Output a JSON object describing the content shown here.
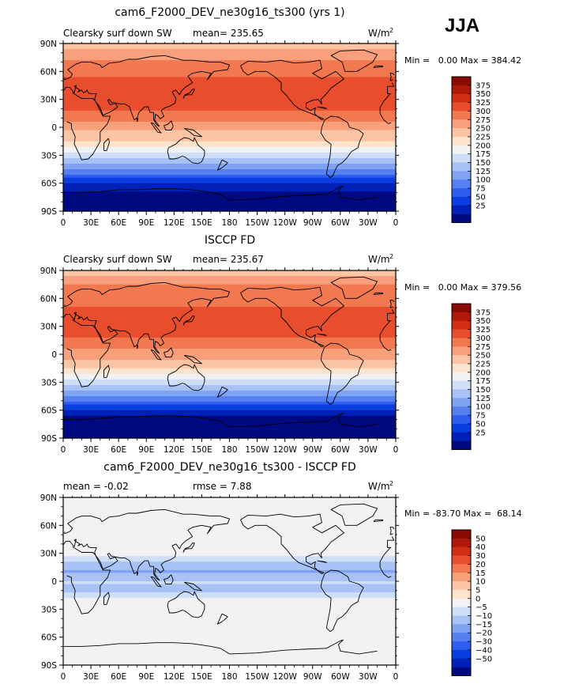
{
  "figure": {
    "season": "JJA",
    "title": "cam6_F2000_DEV_ne30g16_ts300 (yrs 1)"
  },
  "chart_data": [
    {
      "type": "heatmap",
      "title": "cam6_F2000_DEV_ne30g16_ts300 (yrs 1)",
      "left_label": "Clearsky surf down SW",
      "stat_text": "mean= 235.65",
      "stats": {
        "mean": 235.65
      },
      "units_text": "W/m",
      "units_sup": "2",
      "minmax_text": "Min =   0.00 Max = 384.42",
      "min": 0.0,
      "max": 384.42,
      "lon_ticks": [
        "0",
        "30E",
        "60E",
        "90E",
        "120E",
        "150E",
        "180",
        "150W",
        "120W",
        "90W",
        "60W",
        "30W",
        "0"
      ],
      "lat_ticks": [
        "90N",
        "60N",
        "30N",
        "0",
        "30S",
        "60S",
        "90S"
      ],
      "lat_values": [
        90,
        60,
        30,
        0,
        -30,
        -60,
        -90
      ],
      "levels": [
        25,
        50,
        75,
        100,
        125,
        150,
        175,
        200,
        225,
        250,
        275,
        300,
        325,
        350,
        375
      ],
      "level_labels": [
        "375",
        "350",
        "325",
        "300",
        "275",
        "250",
        "225",
        "200",
        "175",
        "150",
        "125",
        "100",
        "75",
        "50",
        "25"
      ],
      "colors": [
        "#000a80",
        "#0020b8",
        "#0a3ee0",
        "#2e5ef0",
        "#5680f0",
        "#80a2f2",
        "#a8c2f5",
        "#cfdff8",
        "#f2f2f4",
        "#fde2cc",
        "#fbc5a5",
        "#f8a07c",
        "#f27850",
        "#e84e2e",
        "#d22e14",
        "#b0180a",
        "#8a0a04"
      ],
      "lat_profile": [
        {
          "lat": 90,
          "v": 262
        },
        {
          "lat": 80,
          "v": 288
        },
        {
          "lat": 70,
          "v": 305
        },
        {
          "lat": 60,
          "v": 318
        },
        {
          "lat": 45,
          "v": 332
        },
        {
          "lat": 30,
          "v": 338
        },
        {
          "lat": 20,
          "v": 330
        },
        {
          "lat": 10,
          "v": 305
        },
        {
          "lat": 0,
          "v": 285
        },
        {
          "lat": -10,
          "v": 262
        },
        {
          "lat": -20,
          "v": 230
        },
        {
          "lat": -30,
          "v": 192
        },
        {
          "lat": -40,
          "v": 150
        },
        {
          "lat": -50,
          "v": 100
        },
        {
          "lat": -60,
          "v": 52
        },
        {
          "lat": -70,
          "v": 18
        },
        {
          "lat": -80,
          "v": 4
        },
        {
          "lat": -90,
          "v": 0
        }
      ]
    },
    {
      "type": "heatmap",
      "title": "ISCCP FD",
      "left_label": "Clearsky surf down SW",
      "stat_text": "mean= 235.67",
      "stats": {
        "mean": 235.67
      },
      "units_text": "W/m",
      "units_sup": "2",
      "minmax_text": "Min =   0.00 Max = 379.56",
      "min": 0.0,
      "max": 379.56,
      "lon_ticks": [
        "0",
        "30E",
        "60E",
        "90E",
        "120E",
        "150E",
        "180",
        "150W",
        "120W",
        "90W",
        "60W",
        "30W",
        "0"
      ],
      "lat_ticks": [
        "90N",
        "60N",
        "30N",
        "0",
        "30S",
        "60S",
        "90S"
      ],
      "lat_values": [
        90,
        60,
        30,
        0,
        -30,
        -60,
        -90
      ],
      "levels": [
        25,
        50,
        75,
        100,
        125,
        150,
        175,
        200,
        225,
        250,
        275,
        300,
        325,
        350,
        375
      ],
      "level_labels": [
        "375",
        "350",
        "325",
        "300",
        "275",
        "250",
        "225",
        "200",
        "175",
        "150",
        "125",
        "100",
        "75",
        "50",
        "25"
      ],
      "colors": [
        "#000a80",
        "#0020b8",
        "#0a3ee0",
        "#2e5ef0",
        "#5680f0",
        "#80a2f2",
        "#a8c2f5",
        "#cfdff8",
        "#f2f2f4",
        "#fde2cc",
        "#fbc5a5",
        "#f8a07c",
        "#f27850",
        "#e84e2e",
        "#d22e14",
        "#b0180a",
        "#8a0a04"
      ],
      "lat_profile": [
        {
          "lat": 90,
          "v": 262
        },
        {
          "lat": 80,
          "v": 290
        },
        {
          "lat": 70,
          "v": 306
        },
        {
          "lat": 60,
          "v": 318
        },
        {
          "lat": 45,
          "v": 330
        },
        {
          "lat": 30,
          "v": 336
        },
        {
          "lat": 20,
          "v": 330
        },
        {
          "lat": 10,
          "v": 308
        },
        {
          "lat": 0,
          "v": 288
        },
        {
          "lat": -10,
          "v": 265
        },
        {
          "lat": -20,
          "v": 232
        },
        {
          "lat": -30,
          "v": 192
        },
        {
          "lat": -40,
          "v": 148
        },
        {
          "lat": -50,
          "v": 98
        },
        {
          "lat": -60,
          "v": 50
        },
        {
          "lat": -70,
          "v": 16
        },
        {
          "lat": -80,
          "v": 4
        },
        {
          "lat": -90,
          "v": 0
        }
      ]
    },
    {
      "type": "heatmap",
      "title": "cam6_F2000_DEV_ne30g16_ts300 - ISCCP FD",
      "left_label": "mean =   -0.02",
      "stat_text": "rmse =    7.88",
      "stats": {
        "mean": -0.02,
        "rmse": 7.88
      },
      "units_text": "W/m",
      "units_sup": "2",
      "minmax_text": "Min = -83.70 Max =  68.14",
      "min": -83.7,
      "max": 68.14,
      "lon_ticks": [
        "0",
        "30E",
        "60E",
        "90E",
        "120E",
        "150E",
        "180",
        "150W",
        "120W",
        "90W",
        "60W",
        "30W",
        "0"
      ],
      "lat_ticks": [
        "90N",
        "60N",
        "30N",
        "0",
        "30S",
        "60S",
        "90S"
      ],
      "lat_values": [
        90,
        60,
        30,
        0,
        -30,
        -60,
        -90
      ],
      "levels": [
        -50,
        -40,
        -30,
        -20,
        -15,
        -10,
        -5,
        0,
        5,
        10,
        15,
        20,
        30,
        40,
        50
      ],
      "level_labels": [
        "50",
        "40",
        "30",
        "20",
        "15",
        "10",
        "5",
        "0",
        "−5",
        "−10",
        "−15",
        "−20",
        "−30",
        "−40",
        "−50"
      ],
      "colors": [
        "#000a80",
        "#0020b8",
        "#0a3ee0",
        "#2e5ef0",
        "#5680f0",
        "#80a2f2",
        "#a8c2f5",
        "#cfdff8",
        "#f2f2f4",
        "#fde2cc",
        "#fbc5a5",
        "#f8a07c",
        "#f27850",
        "#e84e2e",
        "#d22e14",
        "#b0180a",
        "#8a0a04"
      ],
      "lat_profile": [
        {
          "lat": 90,
          "v": 0
        },
        {
          "lat": 80,
          "v": 2
        },
        {
          "lat": 70,
          "v": 3
        },
        {
          "lat": 60,
          "v": 5
        },
        {
          "lat": 45,
          "v": 3
        },
        {
          "lat": 30,
          "v": 2
        },
        {
          "lat": 20,
          "v": -6
        },
        {
          "lat": 10,
          "v": -11
        },
        {
          "lat": 0,
          "v": -4
        },
        {
          "lat": -10,
          "v": -7
        },
        {
          "lat": -20,
          "v": 1
        },
        {
          "lat": -30,
          "v": 2
        },
        {
          "lat": -40,
          "v": 2
        },
        {
          "lat": -50,
          "v": 1
        },
        {
          "lat": -60,
          "v": 2
        },
        {
          "lat": -70,
          "v": 1
        },
        {
          "lat": -80,
          "v": 2
        },
        {
          "lat": -90,
          "v": 2
        }
      ]
    }
  ]
}
